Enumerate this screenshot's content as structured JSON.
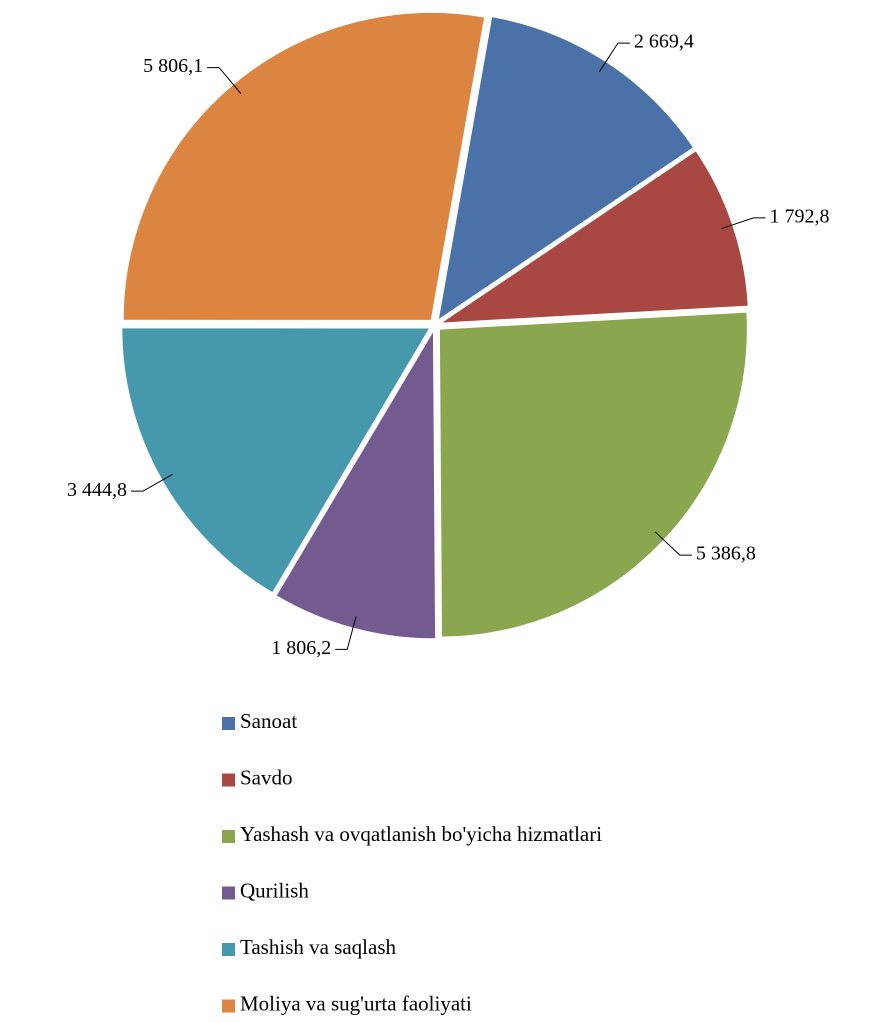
{
  "chart_data": {
    "type": "pie",
    "categories": [
      "Sanoat",
      "Savdo",
      "Yashash va ovqatlanish bo'yicha hizmatlari",
      "Qurilish",
      "Tashish va saqlash",
      "Moliya va sug'urta faoliyati"
    ],
    "values": [
      2669.4,
      1792.8,
      5386.8,
      1806.2,
      3444.8,
      5806.1
    ],
    "value_labels": [
      "2 669,4",
      "1 792,8",
      "5 386,8",
      "1 806,2",
      "3 444,8",
      "5 806,1"
    ],
    "colors": [
      "#4a72a8",
      "#a94743",
      "#8aa64f",
      "#735a8f",
      "#4699ad",
      "#db8540"
    ],
    "legend": "bottom"
  }
}
